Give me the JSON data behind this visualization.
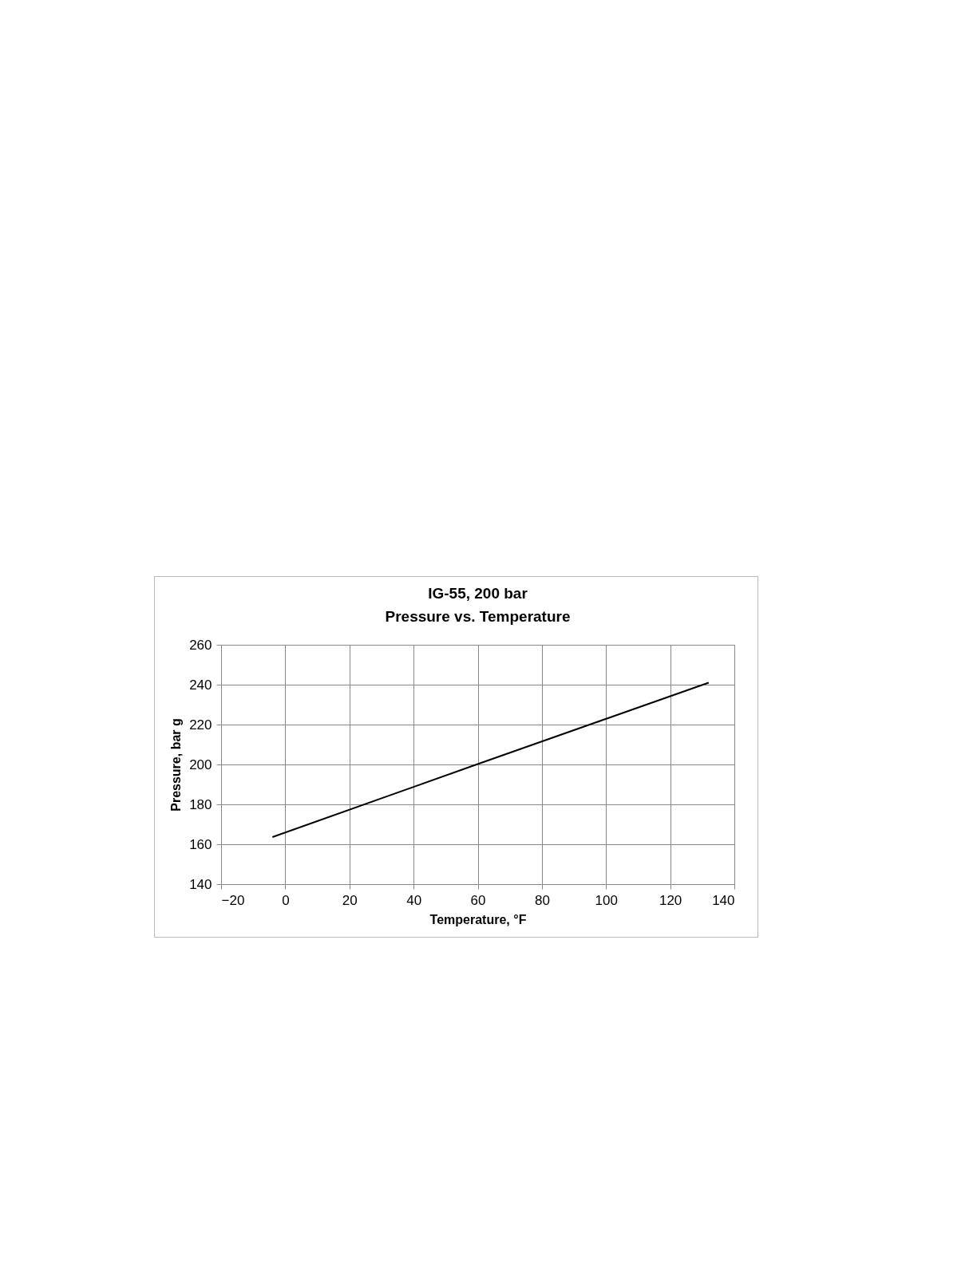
{
  "chart_data": {
    "type": "line",
    "title": [
      "IG-55, 200 bar",
      "Pressure vs. Temperature"
    ],
    "xlabel": "Temperature,  °F",
    "ylabel": "Pressure, bar g",
    "x": [
      -4,
      60,
      132
    ],
    "series": [
      {
        "color": "#000000",
        "values": [
          163.6,
          200.2,
          241
        ]
      }
    ],
    "xlim": [
      -20,
      140
    ],
    "xticks": [
      -20,
      0,
      20,
      40,
      60,
      80,
      100,
      120,
      140
    ],
    "ylim": [
      140,
      260
    ],
    "yticks": [
      140,
      160,
      180,
      200,
      220,
      240,
      260
    ],
    "grid": true,
    "legend": false,
    "marker": "none",
    "line_style": "solid"
  }
}
